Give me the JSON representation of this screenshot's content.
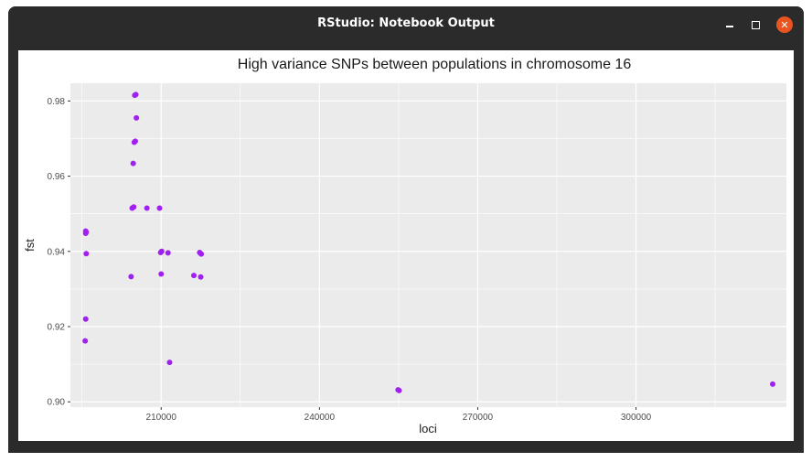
{
  "window": {
    "title": "RStudio: Notebook Output",
    "minimize_label": "",
    "maximize_label": "",
    "close_label": "✕"
  },
  "colors": {
    "titlebar": "#2b2b2b",
    "close_button": "#e95420",
    "panel_background": "#ebebeb",
    "gridline": "#ffffff",
    "point": "#a020f0"
  },
  "chart_data": {
    "type": "scatter",
    "title": "High variance SNPs between populations in chromosome 16",
    "xlabel": "loci",
    "ylabel": "fst",
    "xlim": [
      192800,
      328500
    ],
    "ylim": [
      0.8986,
      0.9847
    ],
    "x_ticks": [
      210000,
      240000,
      270000,
      300000
    ],
    "x_tick_labels": [
      "210000",
      "240000",
      "270000",
      "300000"
    ],
    "y_ticks": [
      0.9,
      0.92,
      0.94,
      0.96,
      0.98
    ],
    "y_tick_labels": [
      "0.90",
      "0.92",
      "0.94",
      "0.96",
      "0.98"
    ],
    "grid": true,
    "legend": "none",
    "points": [
      {
        "x": 205200,
        "y": 0.9817
      },
      {
        "x": 205000,
        "y": 0.9815
      },
      {
        "x": 205300,
        "y": 0.9755
      },
      {
        "x": 205100,
        "y": 0.9693
      },
      {
        "x": 204900,
        "y": 0.969
      },
      {
        "x": 204700,
        "y": 0.9634
      },
      {
        "x": 204500,
        "y": 0.9515
      },
      {
        "x": 204800,
        "y": 0.9518
      },
      {
        "x": 207300,
        "y": 0.9515
      },
      {
        "x": 209700,
        "y": 0.9515
      },
      {
        "x": 195700,
        "y": 0.9454
      },
      {
        "x": 195800,
        "y": 0.9451
      },
      {
        "x": 195700,
        "y": 0.9448
      },
      {
        "x": 195800,
        "y": 0.9394
      },
      {
        "x": 209900,
        "y": 0.9397
      },
      {
        "x": 210100,
        "y": 0.94
      },
      {
        "x": 211300,
        "y": 0.9396
      },
      {
        "x": 217300,
        "y": 0.9397
      },
      {
        "x": 217600,
        "y": 0.9393
      },
      {
        "x": 204300,
        "y": 0.9333
      },
      {
        "x": 210000,
        "y": 0.934
      },
      {
        "x": 216200,
        "y": 0.9336
      },
      {
        "x": 217500,
        "y": 0.9332
      },
      {
        "x": 195700,
        "y": 0.922
      },
      {
        "x": 195600,
        "y": 0.9162
      },
      {
        "x": 211600,
        "y": 0.9105
      },
      {
        "x": 254900,
        "y": 0.9032
      },
      {
        "x": 255100,
        "y": 0.903
      },
      {
        "x": 325900,
        "y": 0.9047
      }
    ]
  }
}
